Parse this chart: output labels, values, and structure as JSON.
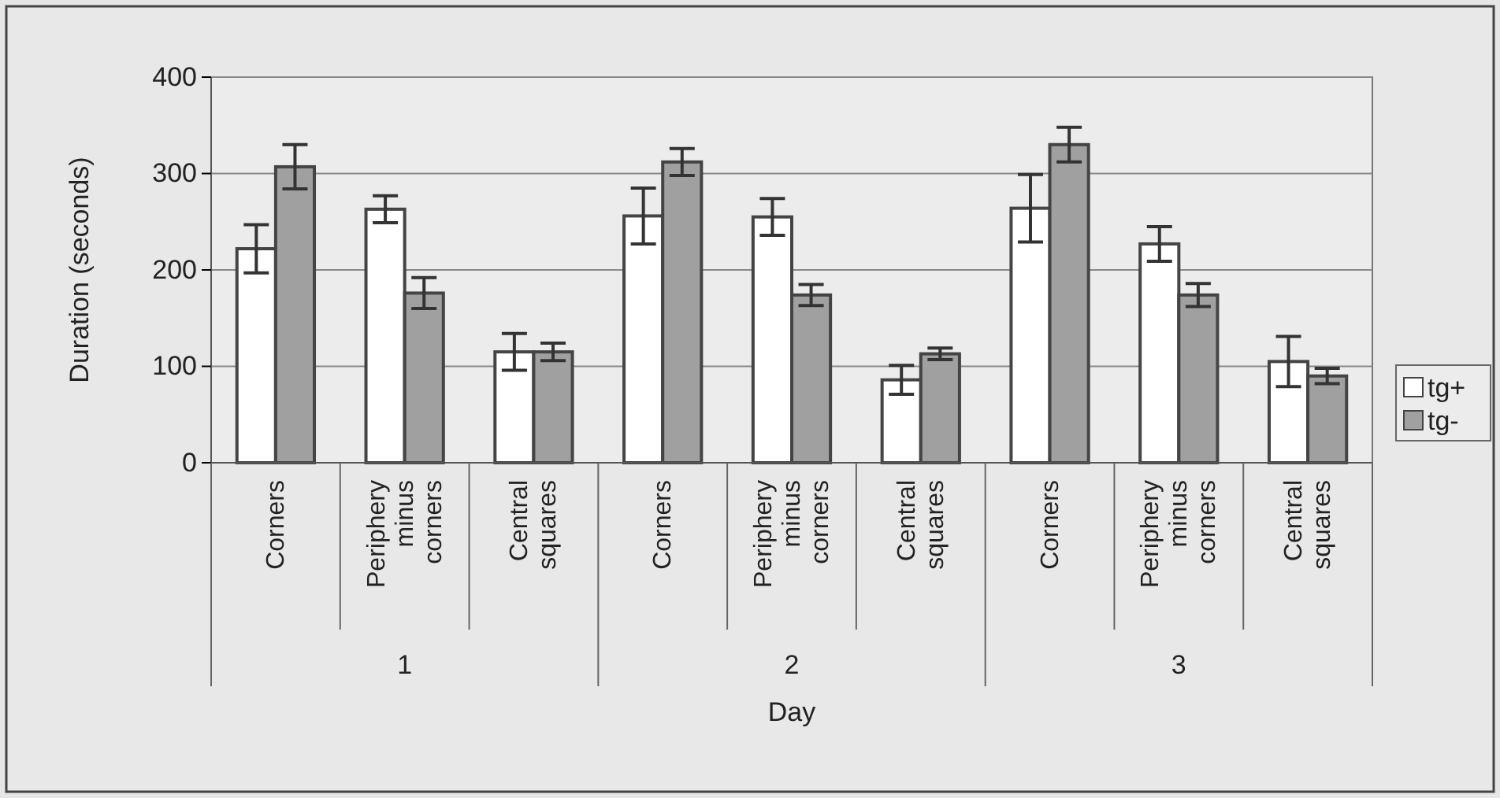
{
  "chart_data": {
    "type": "bar",
    "ylabel": "Duration (seconds)",
    "xlabel": "Day",
    "categories": [
      "Corners",
      "Periphery minus corners",
      "Central squares",
      "Corners",
      "Periphery minus corners",
      "Central squares",
      "Corners",
      "Periphery minus corners",
      "Central squares"
    ],
    "annotations": [
      "1",
      "2",
      "3"
    ],
    "series": [
      {
        "name": "tg+",
        "color": "#ffffff",
        "values": [
          222,
          263,
          115,
          256,
          255,
          86,
          264,
          227,
          105
        ],
        "errors": [
          25,
          14,
          19,
          29,
          19,
          15,
          35,
          18,
          26
        ]
      },
      {
        "name": "tg-",
        "color": "#a0a0a0",
        "values": [
          307,
          176,
          115,
          312,
          174,
          113,
          330,
          174,
          90
        ],
        "errors": [
          23,
          16,
          9,
          14,
          11,
          6,
          18,
          12,
          8
        ]
      }
    ],
    "ylim": [
      0,
      400
    ],
    "yticks": [
      0,
      100,
      200,
      300,
      400
    ],
    "grid": "y",
    "legend": "right"
  }
}
